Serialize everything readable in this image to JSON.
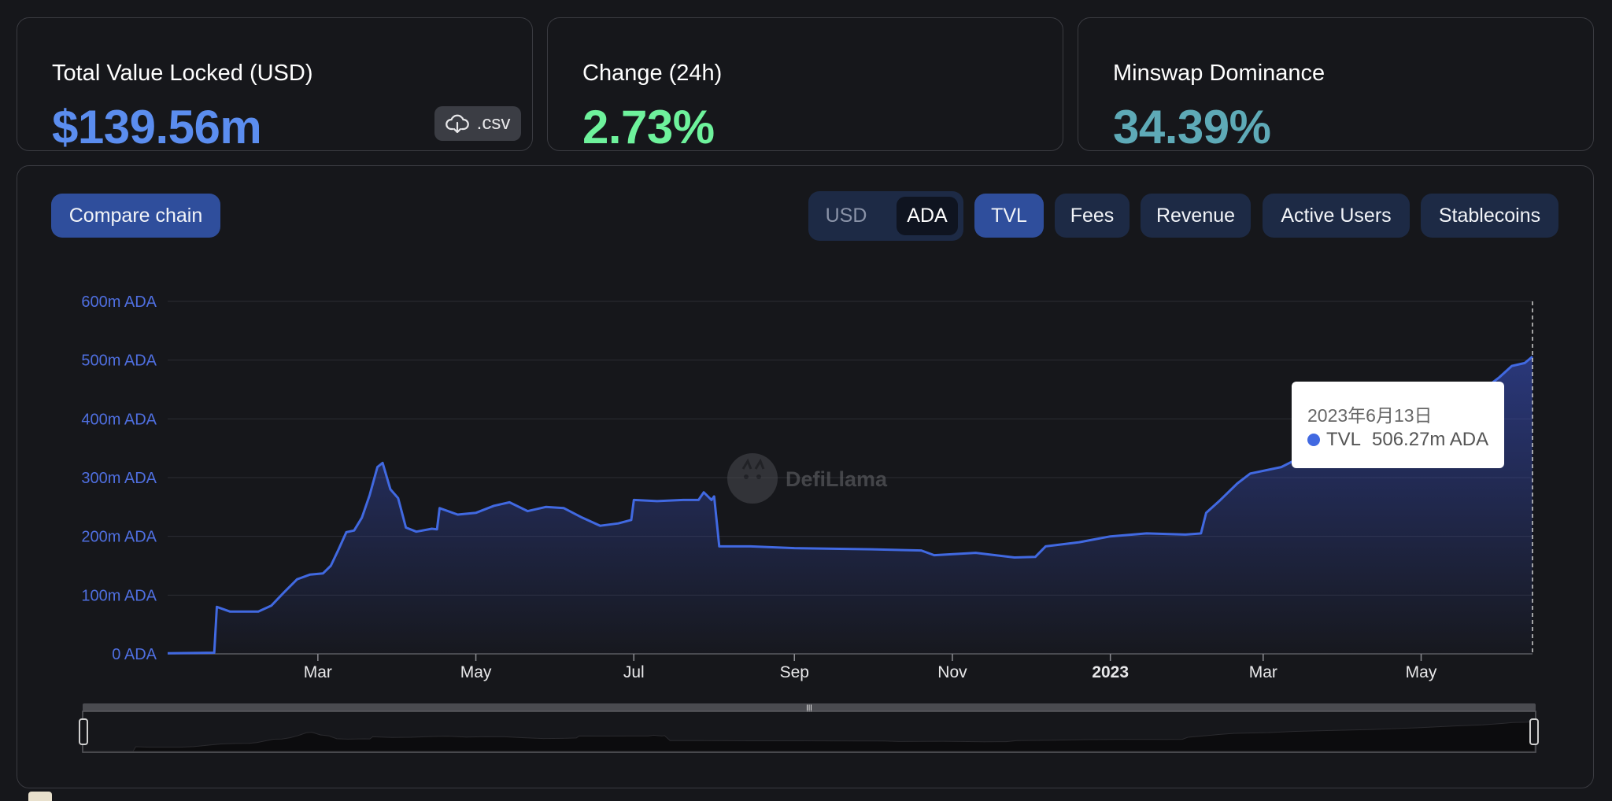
{
  "stats": {
    "tvl": {
      "label": "Total Value Locked (USD)",
      "value": "$139.56m",
      "csv_label": ".csv",
      "color": "#5b8def"
    },
    "change": {
      "label": "Change (24h)",
      "value": "2.73%",
      "color": "#6ef29c"
    },
    "dominance": {
      "label": "Minswap Dominance",
      "value": "34.39%",
      "color": "#5eaab7"
    }
  },
  "toolbar": {
    "compare_label": "Compare chain",
    "currency": {
      "options": [
        "USD",
        "ADA"
      ],
      "selected": "ADA"
    },
    "metrics": [
      "TVL",
      "Fees",
      "Revenue",
      "Active Users",
      "Stablecoins"
    ],
    "active_metric": "TVL"
  },
  "watermark": "DefiLlama",
  "tooltip": {
    "date": "2023年6月13日",
    "series": "TVL",
    "value": "506.27m ADA"
  },
  "colors": {
    "accent": "#4169e1",
    "background": "#16171b"
  },
  "chart_data": {
    "type": "area",
    "y_ticks": [
      "0 ADA",
      "100m ADA",
      "200m ADA",
      "300m ADA",
      "400m ADA",
      "500m ADA",
      "600m ADA"
    ],
    "x_ticks": [
      {
        "label": "Mar",
        "x": "2022-03-01",
        "bold": false
      },
      {
        "label": "May",
        "x": "2022-05-01",
        "bold": false
      },
      {
        "label": "Jul",
        "x": "2022-07-01",
        "bold": false
      },
      {
        "label": "Sep",
        "x": "2022-09-01",
        "bold": false
      },
      {
        "label": "Nov",
        "x": "2022-11-01",
        "bold": false
      },
      {
        "label": "2023",
        "x": "2023-01-01",
        "bold": true
      },
      {
        "label": "Mar",
        "x": "2023-03-01",
        "bold": false
      },
      {
        "label": "May",
        "x": "2023-05-01",
        "bold": false
      }
    ],
    "ylim": [
      0,
      600
    ],
    "y_unit": "m ADA",
    "grid": true,
    "series": [
      {
        "name": "TVL",
        "points": [
          [
            "2022-01-02",
            1
          ],
          [
            "2022-01-20",
            2
          ],
          [
            "2022-01-21",
            80
          ],
          [
            "2022-01-26",
            72
          ],
          [
            "2022-02-06",
            72
          ],
          [
            "2022-02-11",
            82
          ],
          [
            "2022-02-16",
            105
          ],
          [
            "2022-02-21",
            127
          ],
          [
            "2022-02-26",
            135
          ],
          [
            "2022-03-03",
            137
          ],
          [
            "2022-03-06",
            150
          ],
          [
            "2022-03-09",
            178
          ],
          [
            "2022-03-12",
            207
          ],
          [
            "2022-03-15",
            210
          ],
          [
            "2022-03-18",
            232
          ],
          [
            "2022-03-21",
            270
          ],
          [
            "2022-03-24",
            318
          ],
          [
            "2022-03-26",
            325
          ],
          [
            "2022-03-29",
            280
          ],
          [
            "2022-04-01",
            265
          ],
          [
            "2022-04-04",
            215
          ],
          [
            "2022-04-08",
            208
          ],
          [
            "2022-04-14",
            213
          ],
          [
            "2022-04-16",
            212
          ],
          [
            "2022-04-17",
            248
          ],
          [
            "2022-04-24",
            237
          ],
          [
            "2022-05-01",
            240
          ],
          [
            "2022-05-08",
            252
          ],
          [
            "2022-05-14",
            258
          ],
          [
            "2022-05-21",
            243
          ],
          [
            "2022-05-28",
            250
          ],
          [
            "2022-06-04",
            248
          ],
          [
            "2022-06-11",
            232
          ],
          [
            "2022-06-18",
            218
          ],
          [
            "2022-06-25",
            222
          ],
          [
            "2022-06-30",
            228
          ],
          [
            "2022-07-01",
            262
          ],
          [
            "2022-07-10",
            260
          ],
          [
            "2022-07-20",
            262
          ],
          [
            "2022-07-26",
            262
          ],
          [
            "2022-07-28",
            275
          ],
          [
            "2022-07-31",
            262
          ],
          [
            "2022-08-01",
            268
          ],
          [
            "2022-08-03",
            183
          ],
          [
            "2022-08-15",
            183
          ],
          [
            "2022-09-01",
            180
          ],
          [
            "2022-10-01",
            178
          ],
          [
            "2022-10-20",
            176
          ],
          [
            "2022-10-25",
            168
          ],
          [
            "2022-11-10",
            172
          ],
          [
            "2022-11-25",
            164
          ],
          [
            "2022-12-03",
            165
          ],
          [
            "2022-12-07",
            183
          ],
          [
            "2022-12-20",
            190
          ],
          [
            "2023-01-01",
            200
          ],
          [
            "2023-01-15",
            205
          ],
          [
            "2023-01-30",
            203
          ],
          [
            "2023-02-05",
            205
          ],
          [
            "2023-02-07",
            240
          ],
          [
            "2023-02-12",
            260
          ],
          [
            "2023-02-19",
            290
          ],
          [
            "2023-02-24",
            307
          ],
          [
            "2023-03-08",
            318
          ],
          [
            "2023-03-18",
            340
          ],
          [
            "2023-03-28",
            352
          ],
          [
            "2023-04-15",
            372
          ],
          [
            "2023-05-01",
            400
          ],
          [
            "2023-05-15",
            432
          ],
          [
            "2023-05-25",
            450
          ],
          [
            "2023-05-31",
            470
          ],
          [
            "2023-06-05",
            490
          ],
          [
            "2023-06-10",
            495
          ],
          [
            "2023-06-13",
            506
          ]
        ]
      }
    ]
  }
}
